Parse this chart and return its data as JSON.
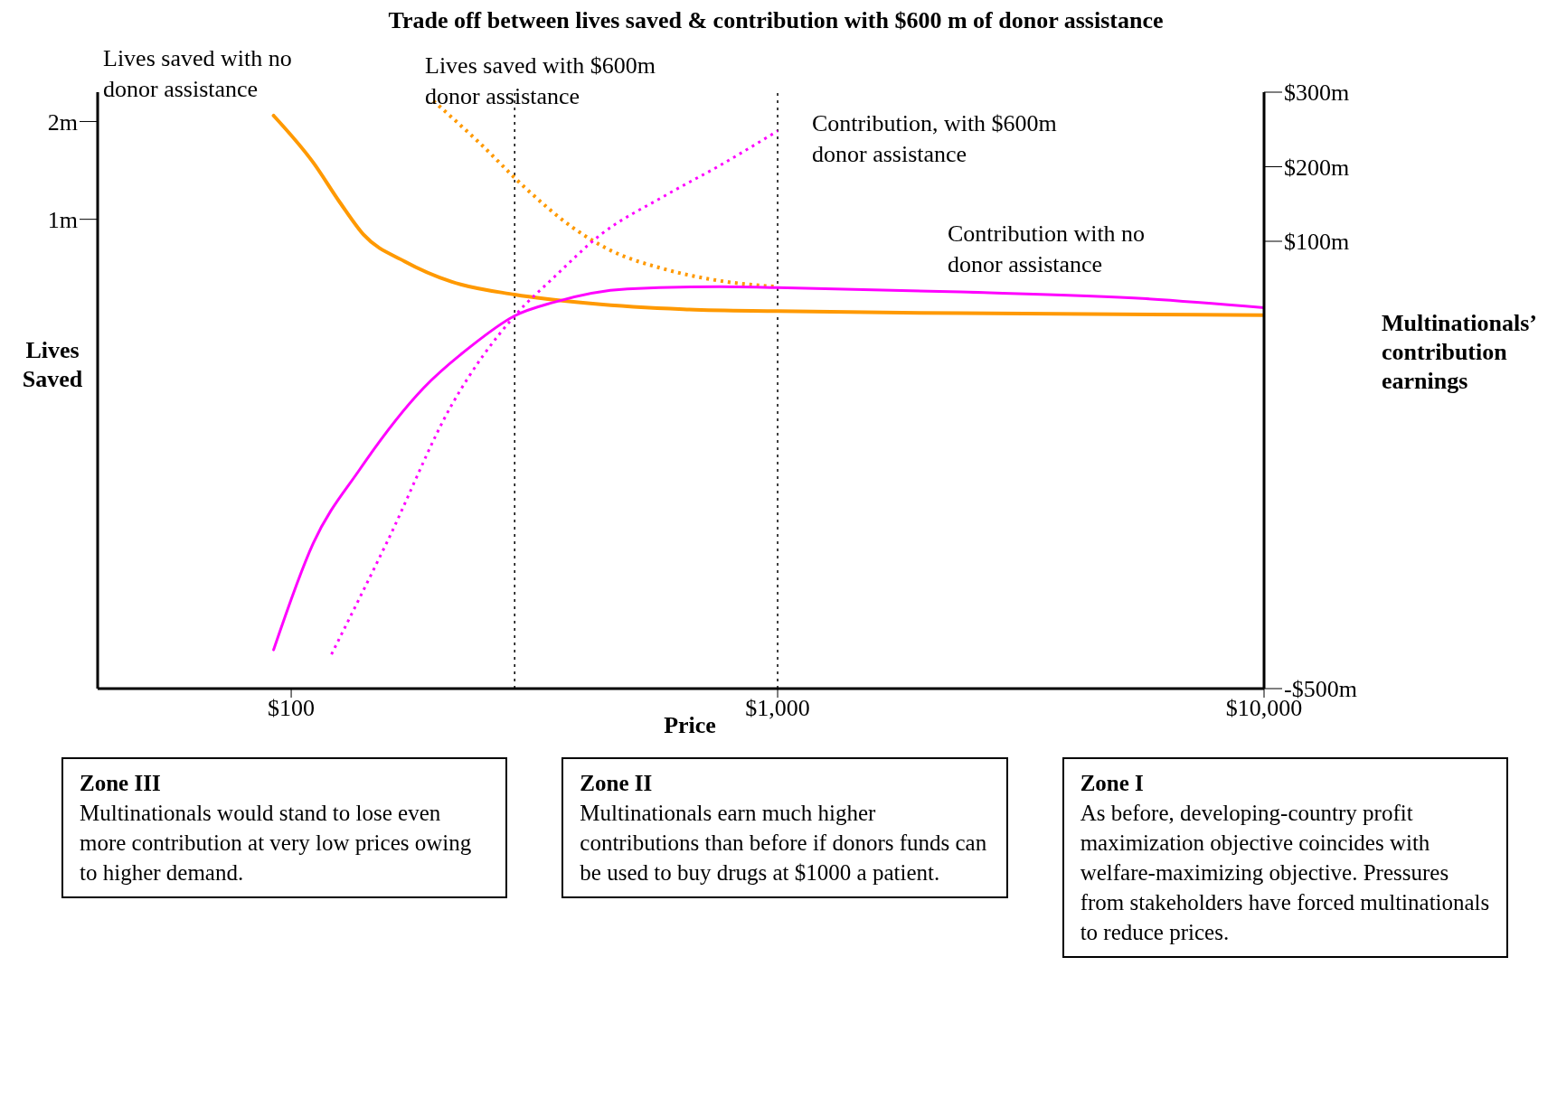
{
  "chart_data": {
    "type": "line",
    "title": "Trade off between lives saved & contribution with $600 m of donor assistance",
    "xlabel": "Price",
    "ylabel": "Lives Saved",
    "y2label": "Multinationals’ contribution earnings",
    "log": "x",
    "marker": "none",
    "xlim": [
      40,
      10000
    ],
    "xticks": [
      {
        "value": 100,
        "label": "$100"
      },
      {
        "value": 1000,
        "label": "$1,000"
      },
      {
        "value": 10000,
        "label": "$10,000"
      }
    ],
    "ylim": [
      -3.8,
      2.3
    ],
    "yticks": [
      {
        "value": 1,
        "label": "1m"
      },
      {
        "value": 2,
        "label": "2m"
      }
    ],
    "y2lim": [
      -500,
      300
    ],
    "y2ticks": [
      {
        "value": 100,
        "label": "$100m"
      },
      {
        "value": 200,
        "label": "$200m"
      },
      {
        "value": 300,
        "label": "$300m"
      },
      {
        "value": -500,
        "label": "-$500m"
      }
    ],
    "series": [
      {
        "name": "Lives saved with no donor assistance",
        "color": "#ff9900",
        "line_style": "solid",
        "x": [
          92,
          111,
          126,
          141,
          171,
          214,
          288,
          412,
          640,
          1000,
          2380,
          10000
        ],
        "values": [
          2.06,
          1.58,
          1.17,
          0.84,
          0.57,
          0.36,
          0.23,
          0.14,
          0.08,
          0.06,
          0.04,
          0.02
        ]
      },
      {
        "name": "Lives saved with $600m donor assistance",
        "color": "#ff9900",
        "line_style": "dotted",
        "x": [
          196,
          244,
          303,
          378,
          450,
          586,
          762,
          1000
        ],
        "values": [
          2.21,
          1.78,
          1.32,
          0.92,
          0.69,
          0.49,
          0.37,
          0.31
        ]
      },
      {
        "name": "Contribution, with $600m donor assistance",
        "color": "#ff00ff",
        "line_style": "dotted",
        "axis": "y2",
        "x": [
          121,
          157,
          214,
          288,
          346,
          431,
          586,
          762,
          1000
        ],
        "values": [
          -454,
          -305,
          -119,
          0,
          51,
          108,
          161,
          202,
          248
        ]
      },
      {
        "name": "Contribution with no donor assistance",
        "color": "#ff00ff",
        "line_style": "solid",
        "axis": "y2",
        "x": [
          92,
          111,
          138,
          187,
          233,
          288,
          346,
          491,
          762,
          1000,
          2380,
          5730,
          10000
        ],
        "values": [
          -448,
          -305,
          -207,
          -97,
          -42,
          0,
          18,
          36,
          39,
          38,
          32,
          23,
          11
        ]
      }
    ],
    "ref_lines": [
      {
        "axis": "x",
        "value": 288,
        "color": "#000000",
        "line_style": "dotted"
      },
      {
        "axis": "x",
        "value": 1000,
        "color": "#000000",
        "line_style": "dotted"
      }
    ],
    "annotations": [
      "Zone III\nMultinationals would stand to lose even more contribution at very low prices owing to higher demand.",
      "Zone II\nMultinationals earn much higher contributions than before if donors funds can be used to buy drugs at $1000 a patient.",
      "Zone I\nAs before, developing-country profit maximization objective coincides with welfare-maximizing objective. Pressures from stakeholders have forced multinationals to reduce prices."
    ]
  }
}
